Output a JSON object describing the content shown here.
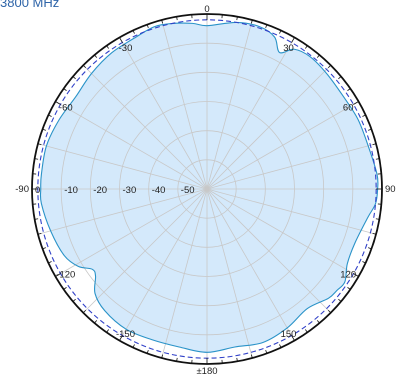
{
  "chart_data": {
    "type": "polar",
    "title": "3800 MHz",
    "angle_unit": "deg",
    "angle_zero": "top",
    "angle_direction": "clockwise",
    "angle_labels": [
      {
        "angle": 0,
        "label": "0"
      },
      {
        "angle": 30,
        "label": "30"
      },
      {
        "angle": 60,
        "label": "60"
      },
      {
        "angle": 90,
        "label": "90"
      },
      {
        "angle": 120,
        "label": "120"
      },
      {
        "angle": 150,
        "label": "150"
      },
      {
        "angle": 180,
        "label": "±180"
      },
      {
        "angle": -150,
        "label": "-150"
      },
      {
        "angle": -120,
        "label": "-120"
      },
      {
        "angle": -90,
        "label": "-90"
      },
      {
        "angle": -60,
        "label": "-60"
      },
      {
        "angle": -30,
        "label": "-30"
      }
    ],
    "radial_range": [
      -60,
      0
    ],
    "radial_ticks": [
      {
        "value": 0,
        "label": "0"
      },
      {
        "value": -10,
        "label": "-10"
      },
      {
        "value": -20,
        "label": "-20"
      },
      {
        "value": -30,
        "label": "-30"
      },
      {
        "value": -40,
        "label": "-40"
      },
      {
        "value": -50,
        "label": "-50"
      }
    ],
    "reference_circle_value": -2,
    "grid": true,
    "colors": {
      "fill": "#d4e9fb",
      "line": "#2a93c8",
      "reference": "#3040c8",
      "grid": "#c8c8c8",
      "title": "#2e64a8"
    },
    "series": [
      {
        "angles": [
          0,
          10,
          18,
          24,
          28,
          32,
          38,
          46,
          55,
          65,
          75,
          85,
          90,
          95,
          100,
          110,
          118,
          124,
          128,
          132,
          140,
          150,
          160,
          170,
          180,
          -170,
          -160,
          -150,
          -140,
          -133,
          -128,
          -125,
          -121,
          -115,
          -105,
          -95,
          -90,
          -85,
          -75,
          -65,
          -55,
          -45,
          -35,
          -25,
          -18,
          -12,
          -5
        ],
        "values": [
          -4,
          -2,
          -1.5,
          -3,
          -7,
          -3.5,
          -2.5,
          -3,
          -3.5,
          -3,
          -2.8,
          -1.5,
          -1.5,
          -2,
          -4,
          -6,
          -5.5,
          -3,
          -3.5,
          -4,
          -6.5,
          -5,
          -4,
          -5,
          -4,
          -5,
          -5,
          -4.5,
          -5.5,
          -7.5,
          -11.5,
          -12,
          -8.5,
          -6,
          -4.5,
          -3,
          -3,
          -3,
          -3,
          -4,
          -5,
          -4,
          -3,
          -2.5,
          -1.5,
          -2,
          -3
        ]
      }
    ]
  }
}
